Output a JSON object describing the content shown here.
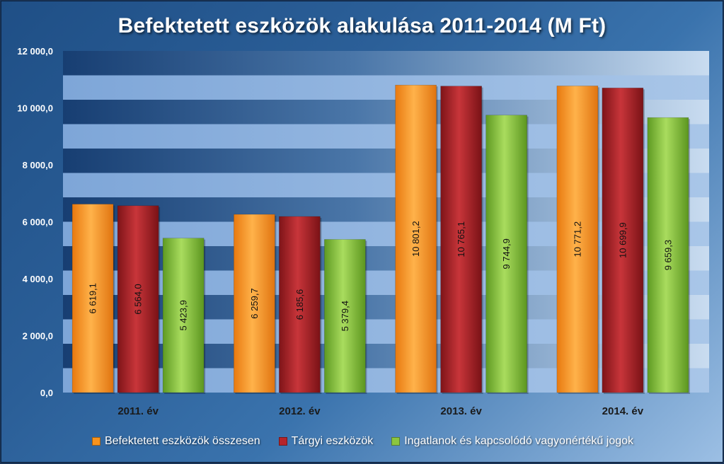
{
  "chart_data": {
    "type": "bar",
    "title": "Befektetett eszközök alakulása 2011-2014 (M Ft)",
    "categories": [
      "2011. év",
      "2012. év",
      "2013. év",
      "2014. év"
    ],
    "series": [
      {
        "name": "Befektetett eszközök összesen",
        "values": [
          6619.1,
          6259.7,
          10801.2,
          10771.2
        ],
        "labels": [
          "6 619,1",
          "6 259,7",
          "10 801,2",
          "10 771,2"
        ],
        "color": "#f7931e"
      },
      {
        "name": "Tárgyi eszközök",
        "values": [
          6564.0,
          6185.6,
          10765.1,
          10699.9
        ],
        "labels": [
          "6 564,0",
          "6 185,6",
          "10 765,1",
          "10 699,9"
        ],
        "color": "#b5242a"
      },
      {
        "name": "Ingatlanok és kapcsolódó vagyonértékű jogok",
        "values": [
          5423.9,
          5379.4,
          9744.9,
          9659.3
        ],
        "labels": [
          "5 423,9",
          "5 379,4",
          "9 744,9",
          "9 659,3"
        ],
        "color": "#8cc63f"
      }
    ],
    "yticks": [
      0,
      2000,
      4000,
      6000,
      8000,
      10000,
      12000
    ],
    "ytick_labels": [
      "0,0",
      "2 000,0",
      "4 000,0",
      "6 000,0",
      "8 000,0",
      "10 000,0",
      "12 000,0"
    ],
    "ylim": [
      0,
      12000
    ],
    "grid": true,
    "legend_position": "bottom"
  }
}
